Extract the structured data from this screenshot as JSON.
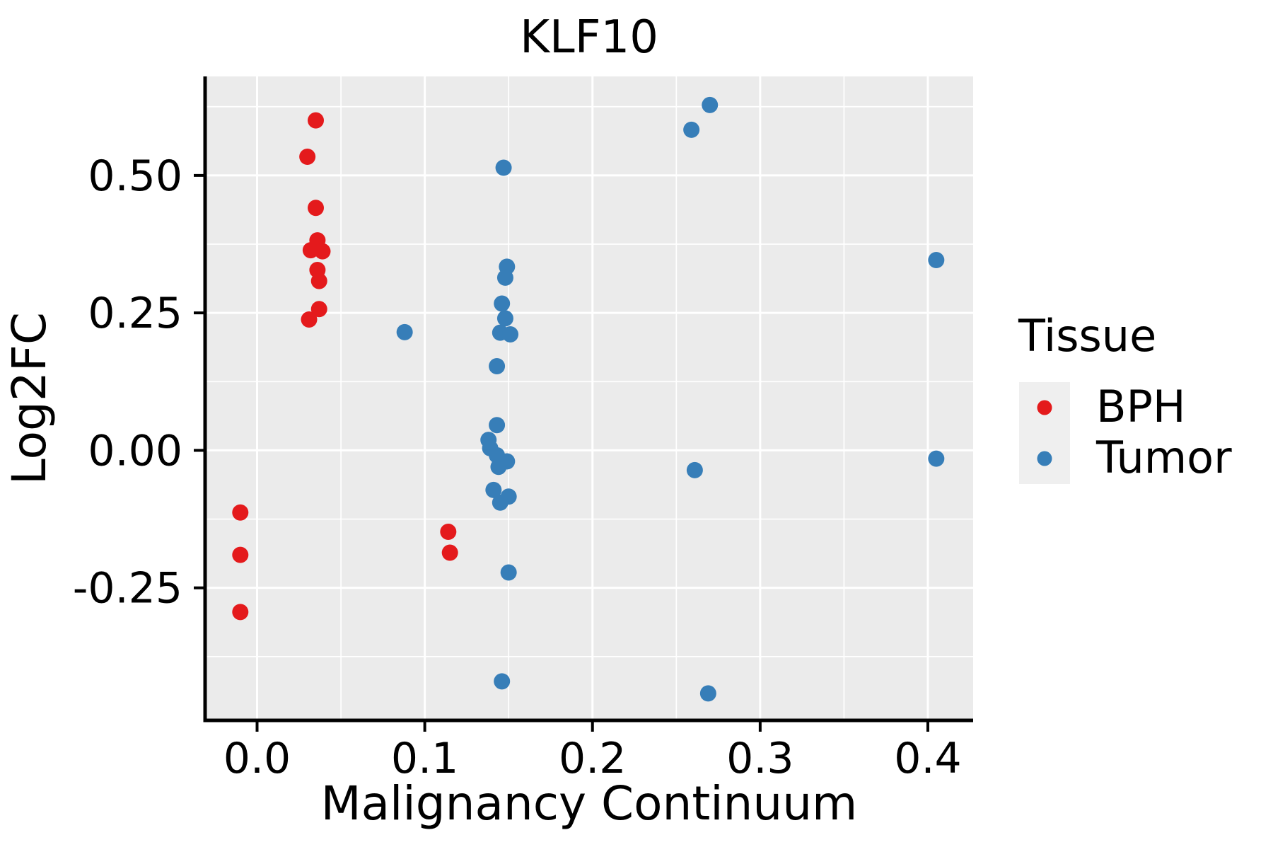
{
  "title": "KLF10",
  "axes": {
    "x": {
      "title": "Malignancy Continuum",
      "tick_labels": [
        "0.0",
        "0.1",
        "0.2",
        "0.3",
        "0.4"
      ],
      "tick_values": [
        0.0,
        0.1,
        0.2,
        0.3,
        0.4
      ],
      "minor_values": [
        0.05,
        0.15,
        0.25,
        0.35
      ],
      "range": [
        -0.031,
        0.427
      ]
    },
    "y": {
      "title": "Log2FC",
      "tick_labels": [
        "0.50",
        "0.25",
        "0.00",
        "-0.25"
      ],
      "tick_values": [
        0.5,
        0.25,
        0.0,
        -0.25
      ],
      "minor_values": [
        0.625,
        0.375,
        0.125,
        -0.125,
        -0.375
      ],
      "range": [
        -0.491,
        0.68
      ]
    }
  },
  "legend": {
    "title": "Tissue",
    "entries": [
      {
        "label": "BPH",
        "color": "#E41A1C"
      },
      {
        "label": "Tumor",
        "color": "#377EB8"
      }
    ]
  },
  "style": {
    "panel_bg": "#EBEBEB",
    "grid_color": "#FFFFFF",
    "axis_color": "#000000",
    "legend_key_bg": "#EFEFEF",
    "bph_color": "#E41A1C",
    "tumor_color": "#377EB8"
  },
  "chart_data": {
    "type": "scatter",
    "title": "KLF10",
    "xlabel": "Malignancy Continuum",
    "ylabel": "Log2FC",
    "xlim": [
      -0.031,
      0.427
    ],
    "ylim": [
      -0.491,
      0.68
    ],
    "grid": true,
    "legend_position": "right",
    "legend_title": "Tissue",
    "series": [
      {
        "name": "BPH",
        "color": "#E41A1C",
        "points": [
          [
            0.035,
            0.6
          ],
          [
            0.03,
            0.534
          ],
          [
            0.035,
            0.441
          ],
          [
            0.036,
            0.382
          ],
          [
            0.032,
            0.364
          ],
          [
            0.039,
            0.362
          ],
          [
            0.036,
            0.328
          ],
          [
            0.037,
            0.308
          ],
          [
            0.037,
            0.257
          ],
          [
            0.031,
            0.238
          ],
          [
            -0.01,
            -0.113
          ],
          [
            -0.01,
            -0.19
          ],
          [
            -0.01,
            -0.294
          ],
          [
            0.114,
            -0.148
          ],
          [
            0.115,
            -0.186
          ]
        ]
      },
      {
        "name": "Tumor",
        "color": "#377EB8",
        "points": [
          [
            0.088,
            0.215
          ],
          [
            0.147,
            0.514
          ],
          [
            0.149,
            0.334
          ],
          [
            0.148,
            0.314
          ],
          [
            0.146,
            0.267
          ],
          [
            0.148,
            0.24
          ],
          [
            0.145,
            0.214
          ],
          [
            0.151,
            0.211
          ],
          [
            0.143,
            0.153
          ],
          [
            0.143,
            0.046
          ],
          [
            0.138,
            0.019
          ],
          [
            0.139,
            0.004
          ],
          [
            0.143,
            -0.009
          ],
          [
            0.149,
            -0.02
          ],
          [
            0.144,
            -0.03
          ],
          [
            0.141,
            -0.072
          ],
          [
            0.15,
            -0.084
          ],
          [
            0.145,
            -0.095
          ],
          [
            0.15,
            -0.222
          ],
          [
            0.146,
            -0.42
          ],
          [
            0.259,
            0.583
          ],
          [
            0.27,
            0.628
          ],
          [
            0.261,
            -0.036
          ],
          [
            0.269,
            -0.442
          ],
          [
            0.405,
            0.346
          ],
          [
            0.405,
            -0.015
          ]
        ]
      }
    ]
  }
}
